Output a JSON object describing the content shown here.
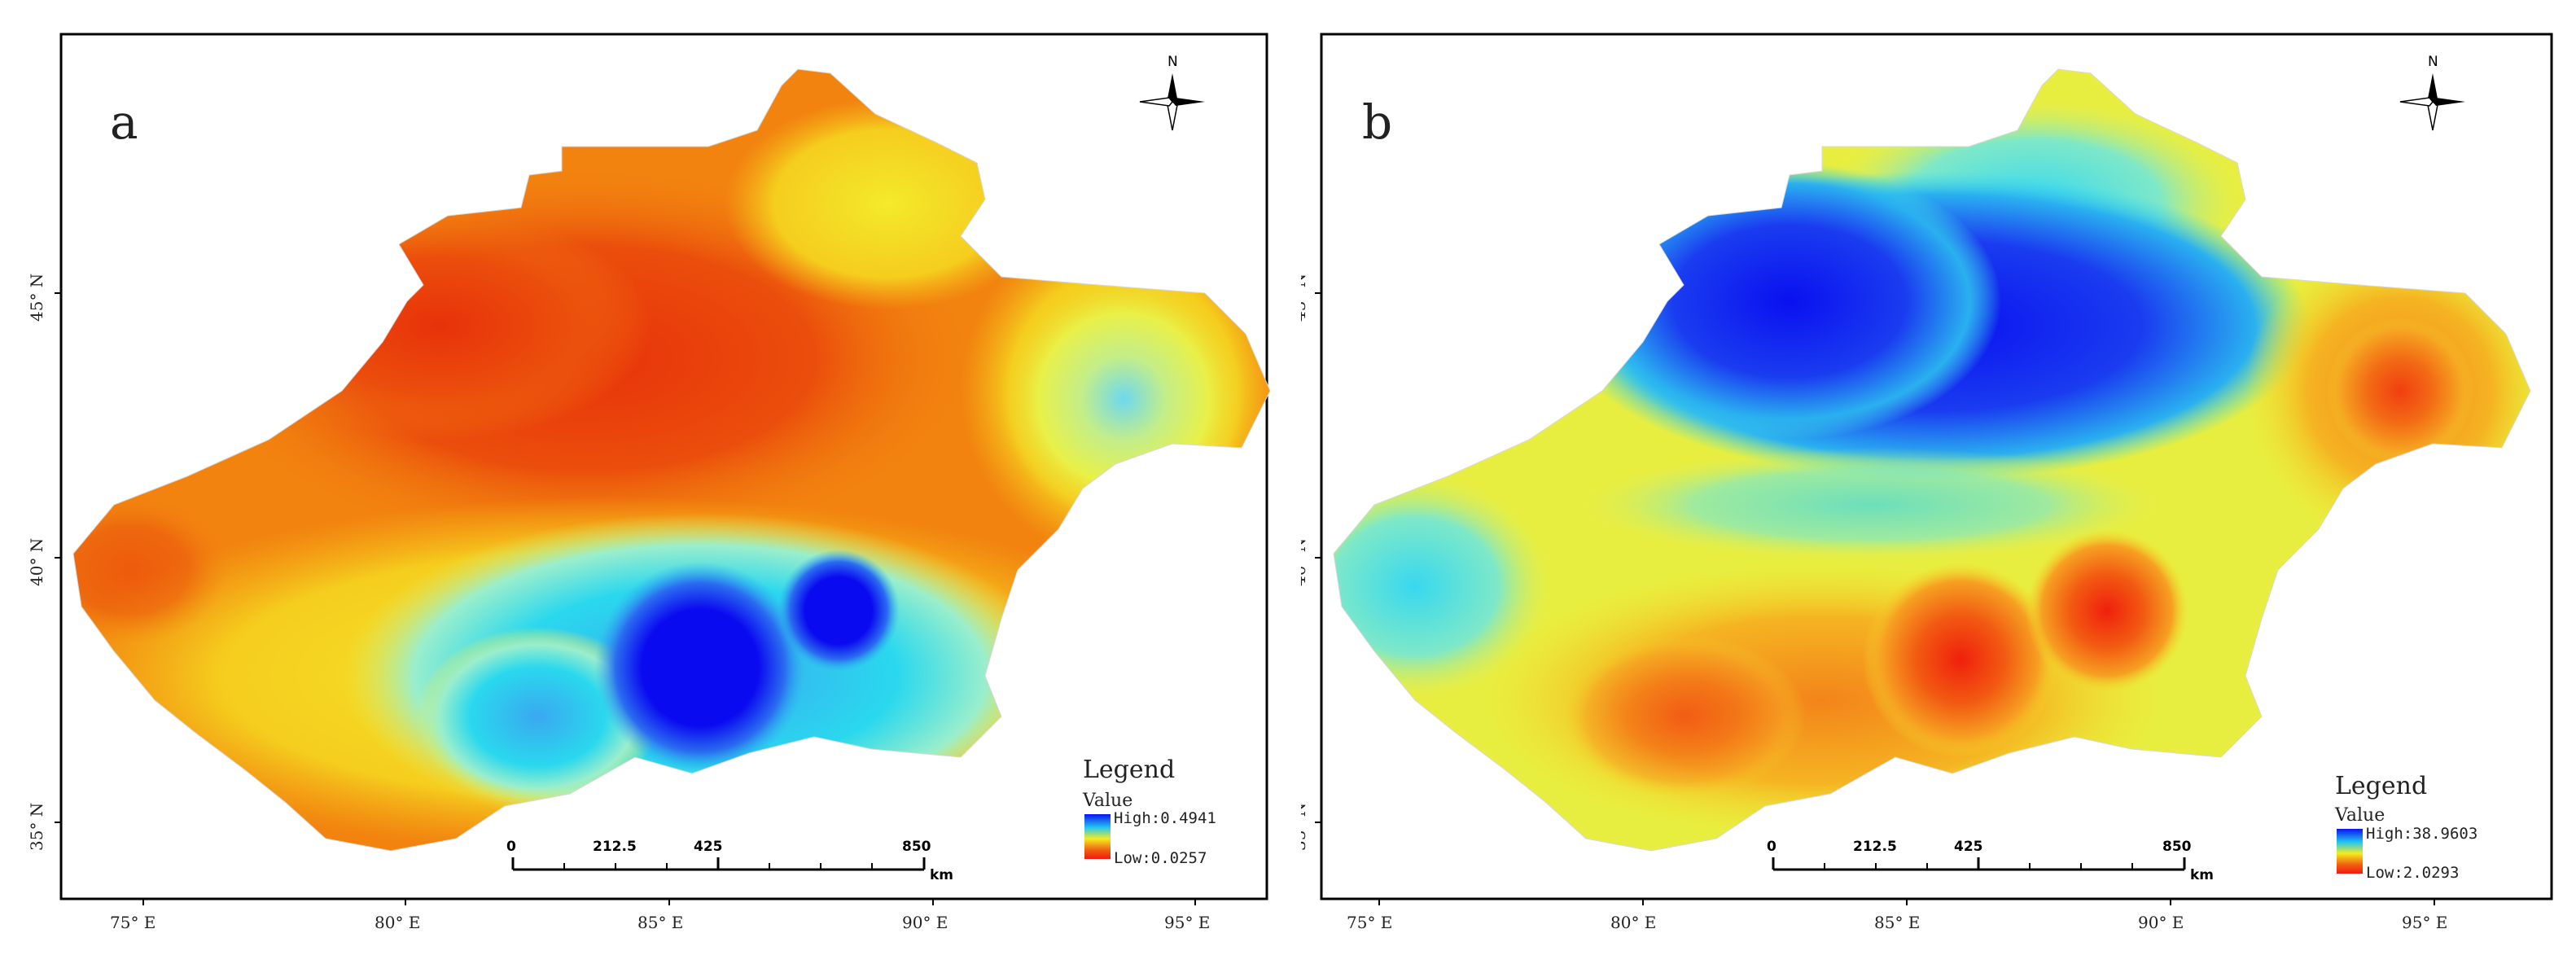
{
  "panels": [
    {
      "letter": "a",
      "legend": {
        "title": "Legend",
        "subtitle": "Value",
        "high": "High:0.4941",
        "low": "Low:0.0257"
      },
      "palette": {
        "body": "#f1780e",
        "north": "#e9400a",
        "south_low": "#1212f0",
        "south_mid": "#2ad4ee",
        "east": "#d8f06a",
        "rim": "#f4e320"
      }
    },
    {
      "letter": "b",
      "legend": {
        "title": "Legend",
        "subtitle": "Value",
        "high": "High:38.9603",
        "low": "Low:2.0293"
      },
      "palette": {
        "body": "#e9ee3c",
        "north": "#1220f0",
        "south_low": "#f03214",
        "south_mid": "#f79a24",
        "east": "#f08a1c",
        "rim": "#54e6d6"
      }
    }
  ],
  "north_arrow": {
    "label": "N"
  },
  "scale_bar": {
    "ticks": [
      "0",
      "212.5",
      "425",
      "850"
    ],
    "unit": "km"
  },
  "axes": {
    "x_ticks": [
      "75° E",
      "80° E",
      "85° E",
      "90° E",
      "95° E"
    ],
    "y_ticks": [
      "45° N",
      "40° N",
      "35° N"
    ]
  },
  "colors": {
    "frame": "#000000",
    "legend_gradient": [
      "#0a14f0",
      "#24c8f0",
      "#f4ec20",
      "#f06010",
      "#f01a10"
    ]
  }
}
